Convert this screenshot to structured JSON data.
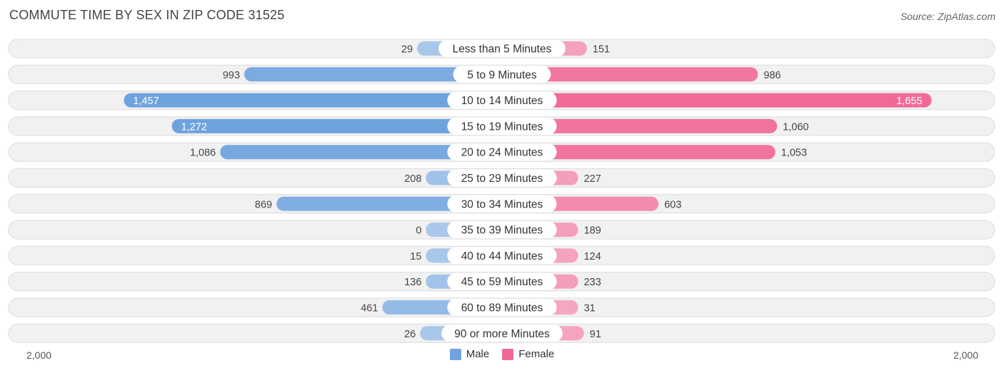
{
  "title": "COMMUTE TIME BY SEX IN ZIP CODE 31525",
  "source": "Source: ZipAtlas.com",
  "colors": {
    "male": "#6fa3de",
    "male_light": "#a9c8eb",
    "female": "#f06a96",
    "female_light": "#f5a9c3",
    "row_bg": "#f1f1f1",
    "row_border": "#dcdcdc"
  },
  "legend": {
    "male": "Male",
    "female": "Female"
  },
  "axis": {
    "left_label": "2,000",
    "right_label": "2,000"
  },
  "chart_data": {
    "type": "bar",
    "orientation": "horizontal-diverging",
    "xlim": [
      -2000,
      2000
    ],
    "categories": [
      "Less than 5 Minutes",
      "5 to 9 Minutes",
      "10 to 14 Minutes",
      "15 to 19 Minutes",
      "20 to 24 Minutes",
      "25 to 29 Minutes",
      "30 to 34 Minutes",
      "35 to 39 Minutes",
      "40 to 44 Minutes",
      "45 to 59 Minutes",
      "60 to 89 Minutes",
      "90 or more Minutes"
    ],
    "series": [
      {
        "name": "Male",
        "values": [
          29,
          993,
          1457,
          1272,
          1086,
          208,
          869,
          0,
          15,
          136,
          461,
          26
        ],
        "labels": [
          "29",
          "993",
          "1,457",
          "1,272",
          "1,086",
          "208",
          "869",
          "0",
          "15",
          "136",
          "461",
          "26"
        ]
      },
      {
        "name": "Female",
        "values": [
          151,
          986,
          1655,
          1060,
          1053,
          227,
          603,
          189,
          124,
          233,
          31,
          91
        ],
        "labels": [
          "151",
          "986",
          "1,655",
          "1,060",
          "1,053",
          "227",
          "603",
          "189",
          "124",
          "233",
          "31",
          "91"
        ]
      }
    ]
  }
}
